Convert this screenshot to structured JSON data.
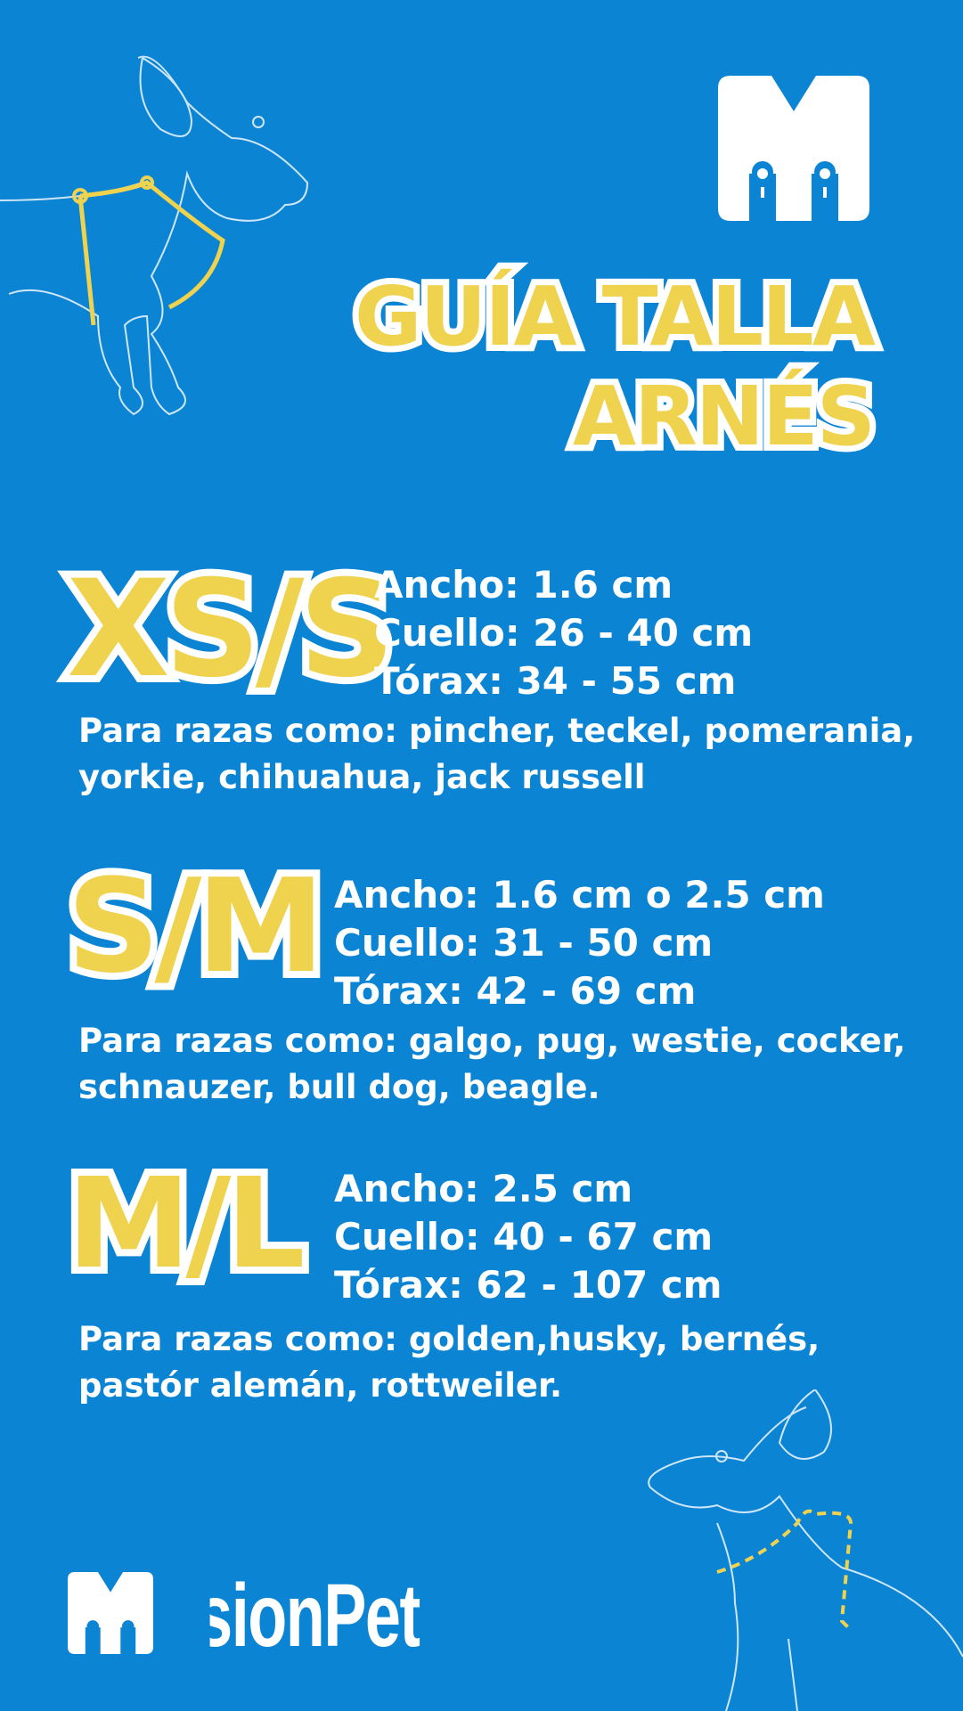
{
  "brand": "MisionPet",
  "title": {
    "line1": "GUÍA TALLA",
    "line2": "ARNÉS"
  },
  "colors": {
    "background": "#0c84d4",
    "accent": "#efd24e",
    "text": "#ffffff"
  },
  "sizes": [
    {
      "label": "XS/S",
      "ancho": "Ancho: 1.6 cm",
      "cuello": "Cuello: 26 - 40 cm",
      "torax": "Tórax: 34 - 55 cm",
      "breeds_1": "Para razas como: pincher, teckel, pomerania,",
      "breeds_2": "yorkie, chihuahua, jack russell"
    },
    {
      "label": "S/M",
      "ancho": "Ancho: 1.6 cm o 2.5 cm",
      "cuello": "Cuello: 31 - 50 cm",
      "torax": "Tórax: 42 - 69 cm",
      "breeds_1": "Para razas como: galgo, pug, westie, cocker,",
      "breeds_2": "schnauzer, bull dog, beagle."
    },
    {
      "label": "M/L",
      "ancho": "Ancho: 2.5 cm",
      "cuello": "Cuello: 40 - 67 cm",
      "torax": "Tórax: 62 - 107 cm",
      "breeds_1": "Para razas como: golden,husky, bernés,",
      "breeds_2": "pastór alemán, rottweiler."
    }
  ]
}
